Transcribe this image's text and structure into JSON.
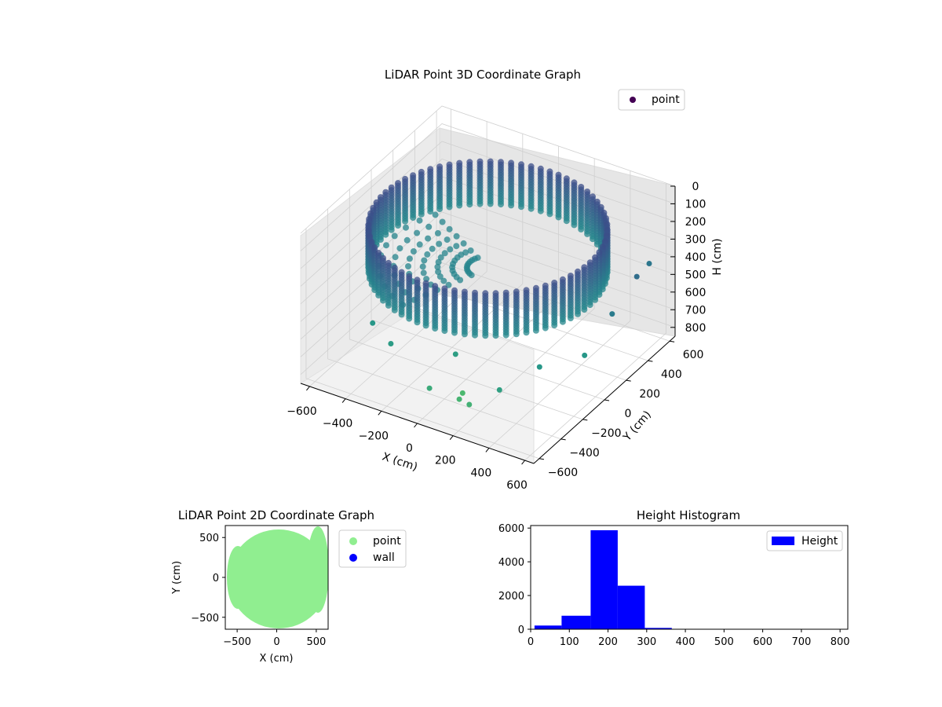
{
  "chart_data": [
    {
      "type": "scatter",
      "projection": "3d",
      "title": "LiDAR Point 3D Coordinate Graph",
      "xlabel": "X (cm)",
      "ylabel": "Y (cm)",
      "zlabel": "H (cm)",
      "xlim": [
        -650,
        650
      ],
      "ylim": [
        -650,
        650
      ],
      "zlim": [
        0,
        850
      ],
      "z_inverted": true,
      "xticks": [
        "−600",
        "−400",
        "−200",
        "0",
        "200",
        "400",
        "600"
      ],
      "yticks": [
        "−600",
        "−400",
        "−200",
        "0",
        "200",
        "400",
        "600"
      ],
      "zticks": [
        "0",
        "100",
        "200",
        "300",
        "400",
        "500",
        "600",
        "700",
        "800"
      ],
      "grid": true,
      "legend": {
        "position": "top-right",
        "entries": [
          "point"
        ]
      },
      "colormap": "viridis",
      "description_of_data": "Ring of points on a circular wall of radius about 570 cm spanning heights 100 to 350 cm, plus a floor region and a few outliers near Y ≈ -600.",
      "series": [
        {
          "name": "point",
          "color": "#440154"
        }
      ],
      "ring": {
        "radius": 570,
        "h_min": 100,
        "h_max": 340
      },
      "outliers": [
        {
          "x": 180,
          "y": -560,
          "h": 700
        },
        {
          "x": 260,
          "y": -600,
          "h": 680
        },
        {
          "x": 150,
          "y": -480,
          "h": 720
        },
        {
          "x": 50,
          "y": -620,
          "h": 650
        },
        {
          "x": 380,
          "y": -520,
          "h": 600
        },
        {
          "x": 470,
          "y": -300,
          "h": 560
        },
        {
          "x": 600,
          "y": -100,
          "h": 560
        },
        {
          "x": 620,
          "y": 120,
          "h": 440
        },
        {
          "x": 600,
          "y": 380,
          "h": 380
        },
        {
          "x": 560,
          "y": 560,
          "h": 420
        },
        {
          "x": -400,
          "y": -400,
          "h": 560
        },
        {
          "x": -250,
          "y": -480,
          "h": 580
        },
        {
          "x": 50,
          "y": -380,
          "h": 590
        }
      ]
    },
    {
      "type": "scatter",
      "title": "LiDAR Point 2D Coordinate Graph",
      "xlabel": "X (cm)",
      "ylabel": "Y (cm)",
      "xlim": [
        -650,
        650
      ],
      "ylim": [
        -650,
        650
      ],
      "xticks": [
        "−500",
        "0",
        "500"
      ],
      "yticks": [
        "−500",
        "0",
        "500"
      ],
      "legend": {
        "position": "outside-right",
        "entries": [
          "point",
          "wall"
        ]
      },
      "series": [
        {
          "name": "point",
          "color": "#90ee90",
          "shape": "filled disk of radius about 570 centered near (0, 0), clipped at the axes"
        },
        {
          "name": "wall",
          "color": "#0000ff",
          "points": []
        }
      ]
    },
    {
      "type": "bar",
      "title": "Height Histogram",
      "xlabel": "",
      "ylabel": "",
      "xlim": [
        0,
        820
      ],
      "ylim": [
        0,
        6150
      ],
      "xticks": [
        "0",
        "100",
        "200",
        "300",
        "400",
        "500",
        "600",
        "700",
        "800"
      ],
      "yticks": [
        "0",
        "2000",
        "4000",
        "6000"
      ],
      "legend": {
        "position": "top-right",
        "entries": [
          "Height"
        ]
      },
      "series": [
        {
          "name": "Height",
          "color": "#0000ff"
        }
      ],
      "bins": [
        {
          "x0": 10,
          "x1": 80,
          "value": 220
        },
        {
          "x0": 80,
          "x1": 155,
          "value": 800
        },
        {
          "x0": 155,
          "x1": 225,
          "value": 5870
        },
        {
          "x0": 225,
          "x1": 295,
          "value": 2580
        },
        {
          "x0": 295,
          "x1": 365,
          "value": 80
        },
        {
          "x0": 365,
          "x1": 435,
          "value": 10
        },
        {
          "x0": 435,
          "x1": 505,
          "value": 5
        },
        {
          "x0": 505,
          "x1": 575,
          "value": 5
        },
        {
          "x0": 575,
          "x1": 645,
          "value": 5
        },
        {
          "x0": 645,
          "x1": 715,
          "value": 3
        },
        {
          "x0": 715,
          "x1": 785,
          "value": 3
        }
      ]
    }
  ]
}
